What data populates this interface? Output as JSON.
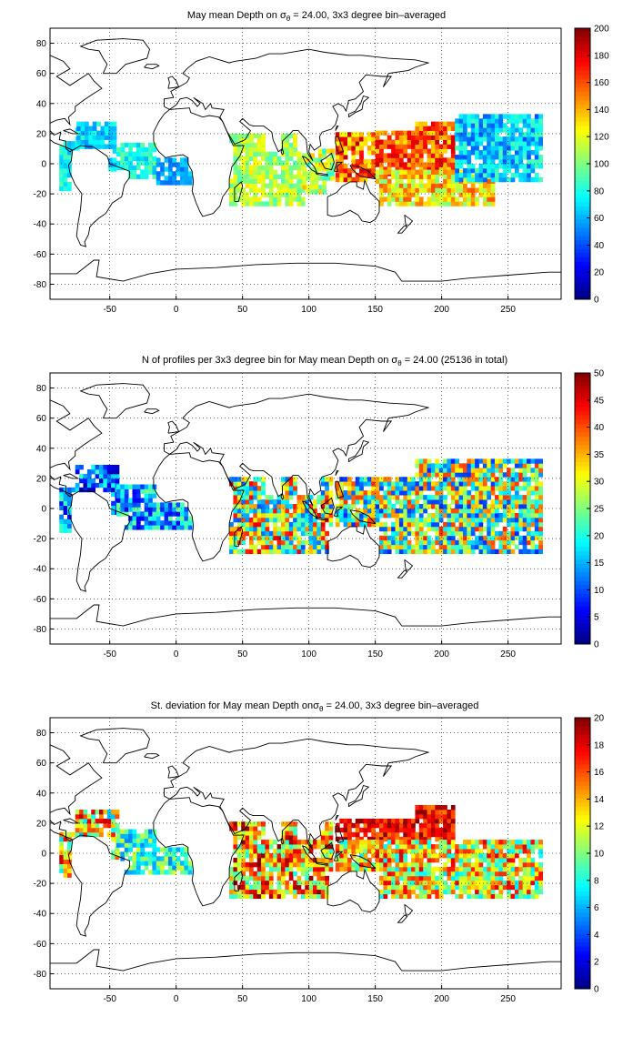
{
  "chart_data": [
    {
      "type": "heatmap",
      "title": {
        "pre": "May mean Depth on ",
        "sym": "σ",
        "sub": "θ",
        "post": " = 24.00, 3x3 degree bin–averaged"
      },
      "xlabel": "",
      "ylabel": "",
      "xlim": [
        -95,
        290
      ],
      "ylim": [
        -90,
        90
      ],
      "xticks": [
        -50,
        0,
        50,
        100,
        150,
        200,
        250
      ],
      "yticks": [
        -80,
        -60,
        -40,
        -20,
        0,
        20,
        40,
        60,
        80
      ],
      "grid": true,
      "colormap": "jet",
      "colorbar": {
        "min": 0,
        "max": 200,
        "ticks": [
          0,
          20,
          40,
          60,
          80,
          100,
          120,
          140,
          160,
          180,
          200
        ]
      },
      "regions": [
        {
          "lon": [
            -88,
            -75
          ],
          "lat": [
            -18,
            22
          ],
          "values": [
            60,
            90
          ]
        },
        {
          "lon": [
            -75,
            -45
          ],
          "lat": [
            -14,
            28
          ],
          "values": [
            50,
            85
          ]
        },
        {
          "lon": [
            -45,
            -15
          ],
          "lat": [
            -10,
            14
          ],
          "values": [
            60,
            95
          ]
        },
        {
          "lon": [
            -15,
            10
          ],
          "lat": [
            -14,
            6
          ],
          "values": [
            45,
            70
          ]
        },
        {
          "lon": [
            40,
            95
          ],
          "lat": [
            -28,
            20
          ],
          "values": [
            90,
            130
          ]
        },
        {
          "lon": [
            95,
            118
          ],
          "lat": [
            -20,
            8
          ],
          "values": [
            80,
            140
          ]
        },
        {
          "lon": [
            120,
            150
          ],
          "lat": [
            -12,
            32
          ],
          "values": [
            120,
            190
          ]
        },
        {
          "lon": [
            150,
            210
          ],
          "lat": [
            -8,
            28
          ],
          "values": [
            130,
            185
          ]
        },
        {
          "lon": [
            150,
            240
          ],
          "lat": [
            -28,
            -6
          ],
          "values": [
            100,
            160
          ]
        },
        {
          "lon": [
            210,
            275
          ],
          "lat": [
            -12,
            32
          ],
          "values": [
            40,
            90
          ]
        }
      ]
    },
    {
      "type": "heatmap",
      "title": {
        "pre": "N of profiles per 3x3 degree bin for May mean Depth on ",
        "sym": "σ",
        "sub": "θ",
        "post": " = 24.00 (25136 in total)"
      },
      "xlabel": "",
      "ylabel": "",
      "xlim": [
        -95,
        290
      ],
      "ylim": [
        -90,
        90
      ],
      "xticks": [
        -50,
        0,
        50,
        100,
        150,
        200,
        250
      ],
      "yticks": [
        -80,
        -60,
        -40,
        -20,
        0,
        20,
        40,
        60,
        80
      ],
      "grid": true,
      "colormap": "jet",
      "colorbar": {
        "min": 0,
        "max": 50,
        "ticks": [
          0,
          5,
          10,
          15,
          20,
          25,
          30,
          35,
          40,
          45,
          50
        ]
      },
      "regions": [
        {
          "lon": [
            -88,
            -45
          ],
          "lat": [
            -16,
            28
          ],
          "values": [
            2,
            22
          ]
        },
        {
          "lon": [
            -45,
            10
          ],
          "lat": [
            -14,
            14
          ],
          "values": [
            5,
            25
          ]
        },
        {
          "lon": [
            40,
            118
          ],
          "lat": [
            -30,
            22
          ],
          "values": [
            10,
            45
          ]
        },
        {
          "lon": [
            120,
            275
          ],
          "lat": [
            -30,
            32
          ],
          "values": [
            8,
            42
          ]
        }
      ]
    },
    {
      "type": "heatmap",
      "title": {
        "pre": "St. deviation for May mean Depth on",
        "sym": "σ",
        "sub": "θ",
        "post": " = 24.00, 3x3 degree bin–averaged"
      },
      "xlabel": "",
      "ylabel": "",
      "xlim": [
        -95,
        290
      ],
      "ylim": [
        -90,
        90
      ],
      "xticks": [
        -50,
        0,
        50,
        100,
        150,
        200,
        250
      ],
      "yticks": [
        -80,
        -60,
        -40,
        -20,
        0,
        20,
        40,
        60,
        80
      ],
      "grid": true,
      "colormap": "jet",
      "colorbar": {
        "min": 0,
        "max": 20,
        "ticks": [
          0,
          2,
          4,
          6,
          8,
          10,
          12,
          14,
          16,
          18,
          20
        ]
      },
      "regions": [
        {
          "lon": [
            -88,
            -45
          ],
          "lat": [
            -16,
            28
          ],
          "values": [
            6,
            19
          ]
        },
        {
          "lon": [
            -45,
            10
          ],
          "lat": [
            -14,
            14
          ],
          "values": [
            5,
            12
          ]
        },
        {
          "lon": [
            40,
            118
          ],
          "lat": [
            -30,
            22
          ],
          "values": [
            8,
            20
          ]
        },
        {
          "lon": [
            120,
            210
          ],
          "lat": [
            8,
            32
          ],
          "values": [
            15,
            20
          ]
        },
        {
          "lon": [
            120,
            275
          ],
          "lat": [
            -30,
            8
          ],
          "values": [
            7,
            18
          ]
        }
      ]
    }
  ]
}
